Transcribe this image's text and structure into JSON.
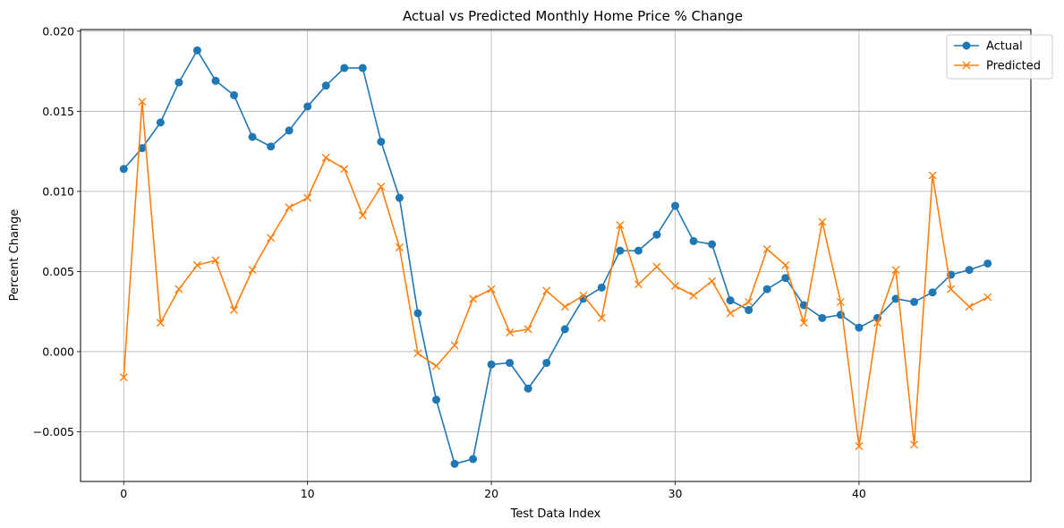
{
  "chart_data": {
    "type": "line",
    "title": "Actual vs Predicted Monthly Home Price % Change",
    "xlabel": "Test Data Index",
    "ylabel": "Percent Change",
    "xlim": [
      -2.35,
      49.35
    ],
    "ylim": [
      -0.0081,
      0.0201
    ],
    "xticks": [
      0,
      10,
      20,
      30,
      40
    ],
    "xtick_labels": [
      "0",
      "10",
      "20",
      "30",
      "40"
    ],
    "yticks": [
      -0.005,
      0.0,
      0.005,
      0.01,
      0.015,
      0.02
    ],
    "ytick_labels": [
      "−0.005",
      "0.000",
      "0.005",
      "0.010",
      "0.015",
      "0.020"
    ],
    "grid": true,
    "legend_position": "top-right",
    "x": [
      0,
      1,
      2,
      3,
      4,
      5,
      6,
      7,
      8,
      9,
      10,
      11,
      12,
      13,
      14,
      15,
      16,
      17,
      18,
      19,
      20,
      21,
      22,
      23,
      24,
      25,
      26,
      27,
      28,
      29,
      30,
      31,
      32,
      33,
      34,
      35,
      36,
      37,
      38,
      39,
      40,
      41,
      42,
      43,
      44,
      45,
      46,
      47
    ],
    "series": [
      {
        "name": "Actual",
        "color": "#1f77b4",
        "marker": "circle",
        "values": [
          0.0114,
          0.0127,
          0.0143,
          0.0168,
          0.0188,
          0.0169,
          0.016,
          0.0134,
          0.0128,
          0.0138,
          0.0153,
          0.0166,
          0.0177,
          0.0177,
          0.0131,
          0.0096,
          0.0024,
          -0.003,
          -0.007,
          -0.0067,
          -0.0008,
          -0.0007,
          -0.0023,
          -0.0007,
          0.0014,
          0.0033,
          0.004,
          0.0063,
          0.0063,
          0.0073,
          0.0091,
          0.0069,
          0.0067,
          0.0032,
          0.0026,
          0.0039,
          0.0046,
          0.0029,
          0.0021,
          0.0023,
          0.0015,
          0.0021,
          0.0033,
          0.0031,
          0.0037,
          0.0048,
          0.0051,
          0.0055
        ]
      },
      {
        "name": "Predicted",
        "color": "#ff7f0e",
        "marker": "x",
        "values": [
          -0.0016,
          0.0156,
          0.0018,
          0.0039,
          0.0054,
          0.0057,
          0.0026,
          0.0051,
          0.0071,
          0.009,
          0.0096,
          0.0121,
          0.0114,
          0.0085,
          0.0103,
          0.0065,
          -0.0001,
          -0.0009,
          0.0004,
          0.0033,
          0.0039,
          0.0012,
          0.0014,
          0.0038,
          0.0028,
          0.0035,
          0.0021,
          0.0079,
          0.0042,
          0.0053,
          0.0041,
          0.0035,
          0.0044,
          0.0024,
          0.0031,
          0.0064,
          0.0054,
          0.0018,
          0.0081,
          0.0031,
          -0.0059,
          0.0018,
          0.0051,
          -0.0058,
          0.011,
          0.0039,
          0.0028,
          0.0034
        ]
      }
    ]
  }
}
